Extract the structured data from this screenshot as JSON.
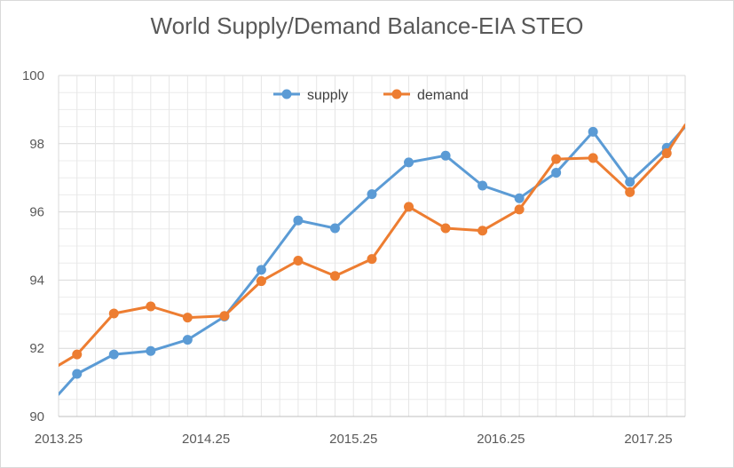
{
  "chart_data": {
    "type": "line",
    "title": "World Supply/Demand Balance-EIA STEO",
    "xlabel": "",
    "ylabel": "",
    "xlim": [
      2013.25,
      2017.5
    ],
    "ylim": [
      90,
      100
    ],
    "x_ticks": [
      "2013.25",
      "2014.25",
      "2015.25",
      "2016.25",
      "2017.25"
    ],
    "y_ticks": [
      "90",
      "92",
      "94",
      "96",
      "98",
      "100"
    ],
    "grid": true,
    "legend_position": "top",
    "x": [
      2013.25,
      2013.375,
      2013.625,
      2013.875,
      2014.125,
      2014.375,
      2014.625,
      2014.875,
      2015.125,
      2015.375,
      2015.625,
      2015.875,
      2016.125,
      2016.375,
      2016.625,
      2016.875,
      2017.125,
      2017.375,
      2017.5
    ],
    "series": [
      {
        "name": "supply",
        "color": "#5b9bd5",
        "values": [
          90.65,
          91.25,
          91.82,
          91.92,
          92.25,
          92.93,
          94.3,
          95.75,
          95.52,
          96.52,
          97.45,
          97.65,
          96.77,
          96.4,
          97.15,
          98.35,
          96.88,
          97.88,
          98.5
        ],
        "markers": [
          false,
          true,
          true,
          true,
          true,
          true,
          true,
          true,
          true,
          true,
          true,
          true,
          true,
          true,
          true,
          true,
          true,
          true,
          false
        ]
      },
      {
        "name": "demand",
        "color": "#ed7d31",
        "values": [
          91.5,
          91.82,
          93.02,
          93.23,
          92.9,
          92.95,
          93.97,
          94.57,
          94.12,
          94.62,
          96.15,
          95.52,
          95.45,
          96.07,
          97.55,
          97.58,
          96.58,
          97.72,
          98.55
        ],
        "markers": [
          false,
          true,
          true,
          true,
          true,
          true,
          true,
          true,
          true,
          true,
          true,
          true,
          true,
          true,
          true,
          true,
          true,
          true,
          false
        ]
      }
    ]
  }
}
